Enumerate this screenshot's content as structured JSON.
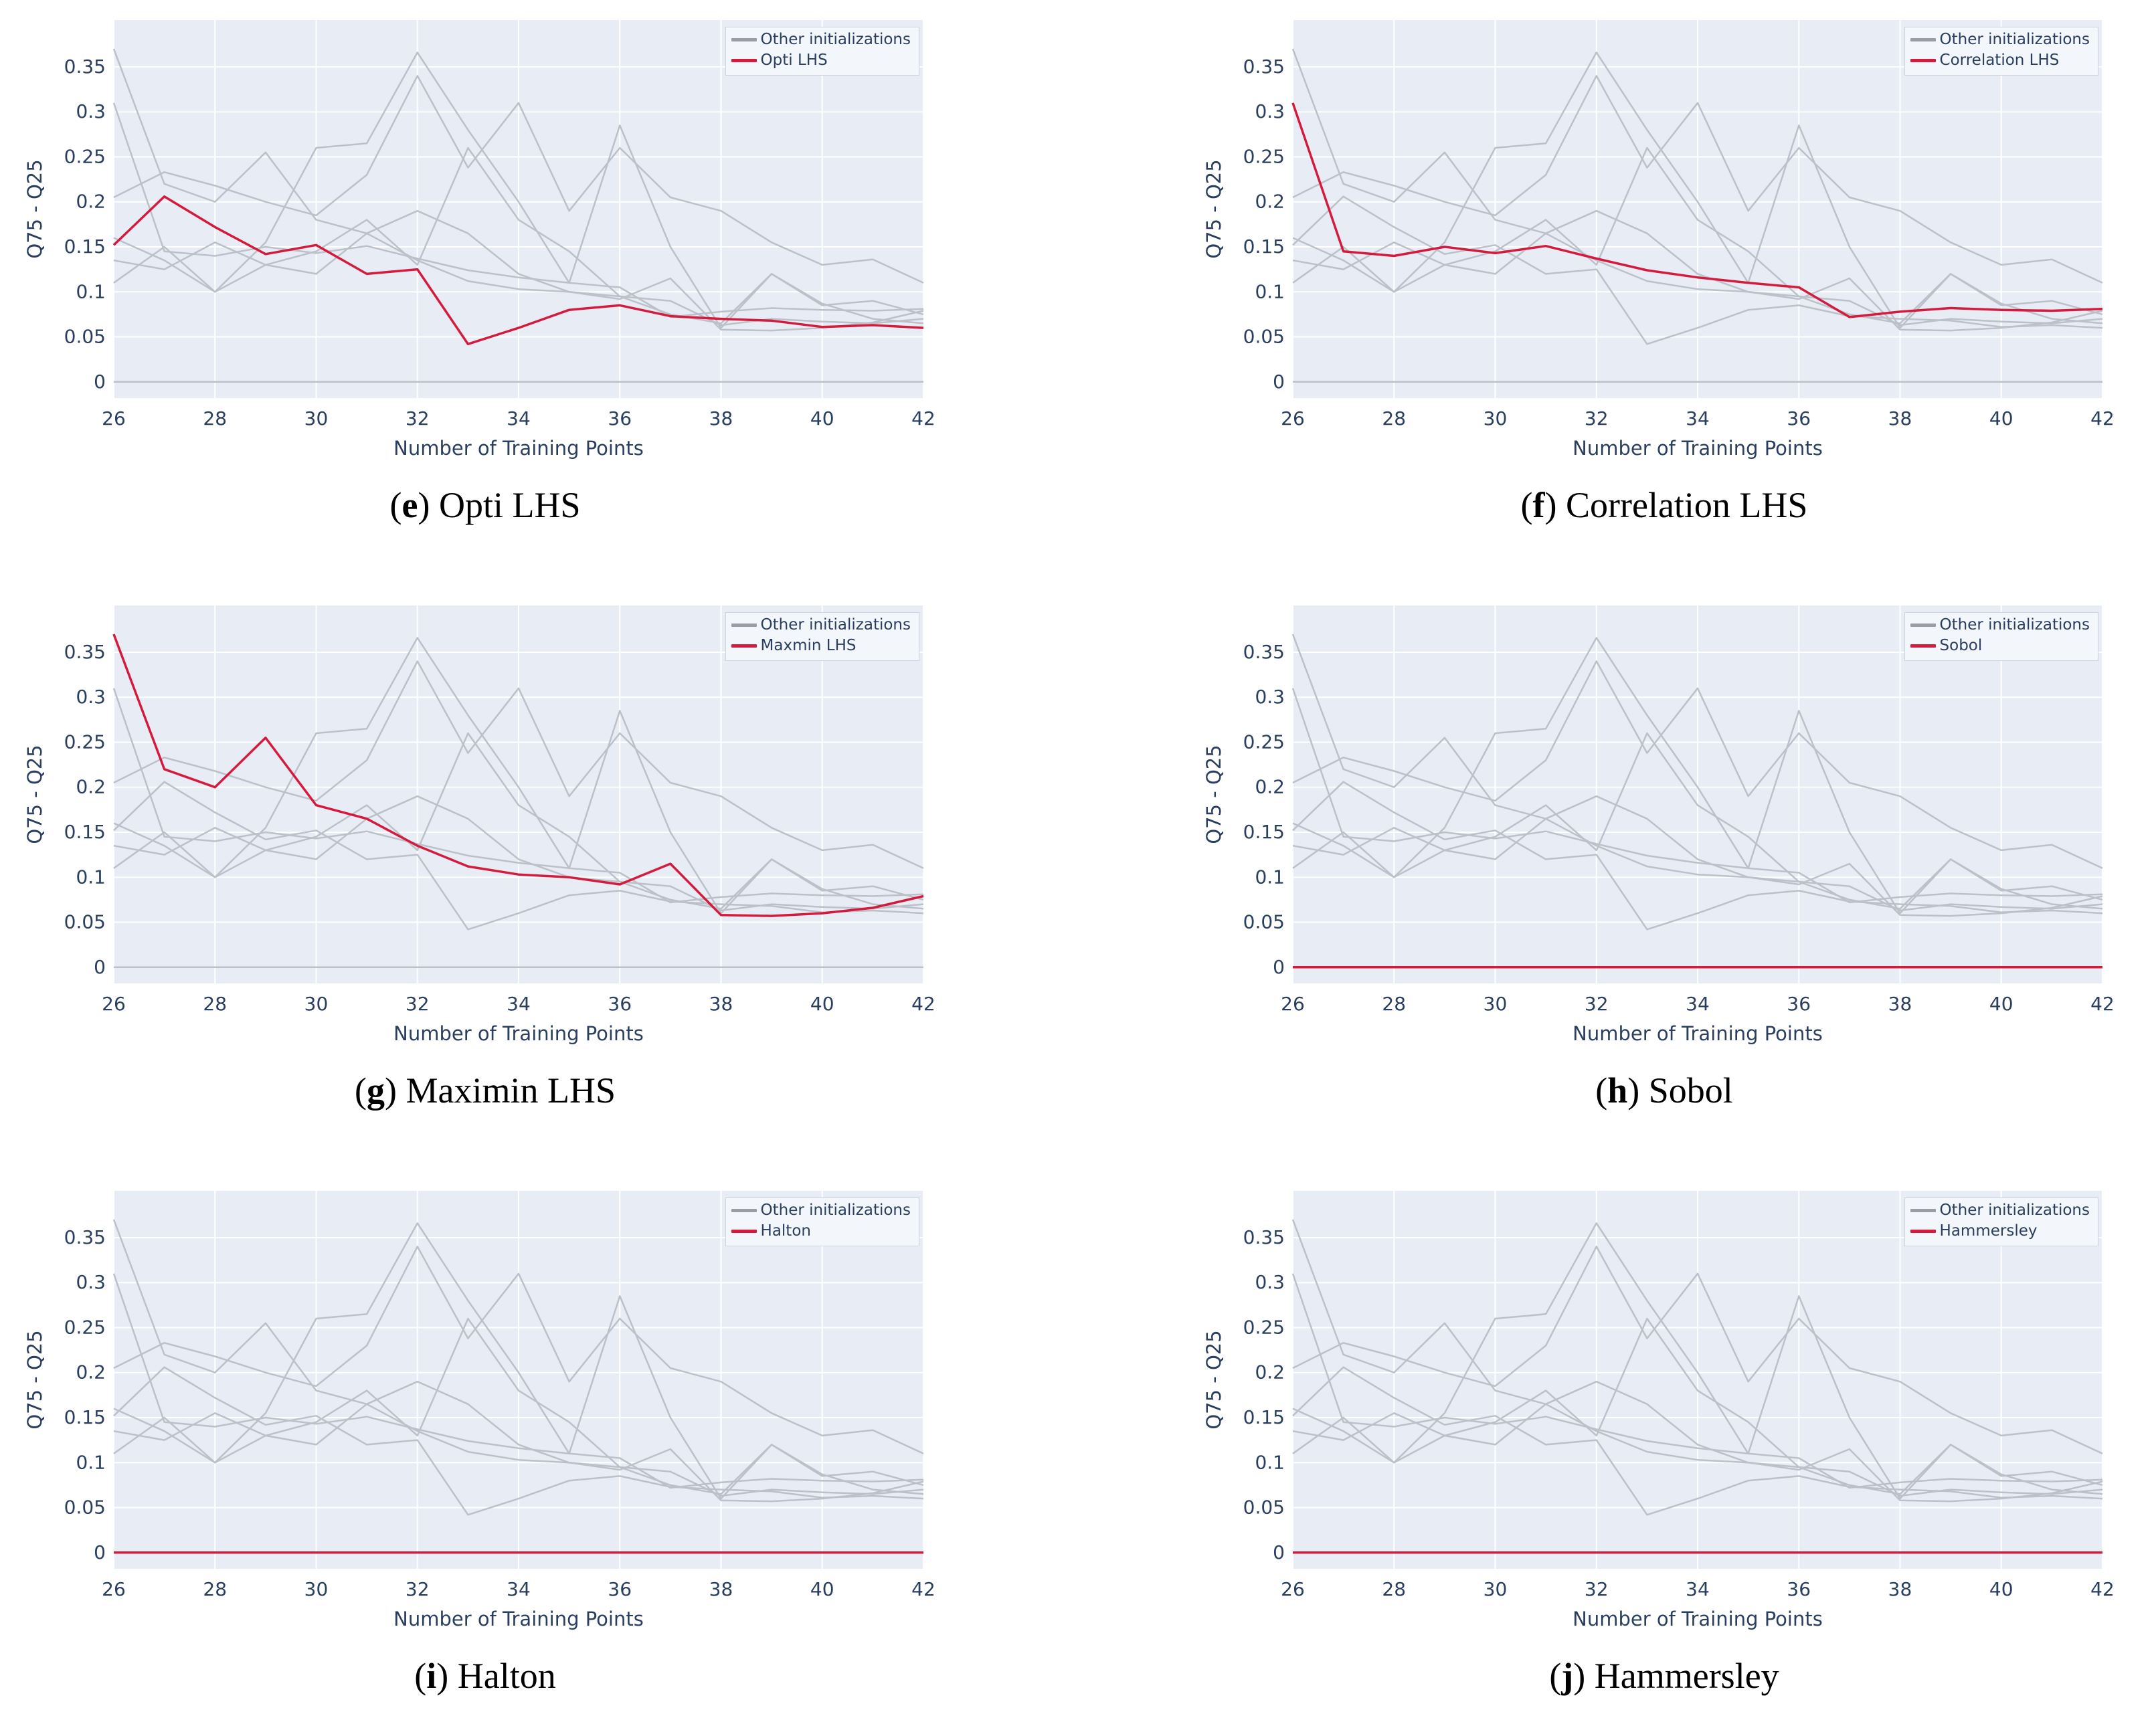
{
  "figure": {
    "legend": {
      "other_label": "Other initializations"
    },
    "axis": {
      "x_label": "Number of Training Points",
      "y_label": "Q75 - Q25",
      "x_tick_labels": [
        "26",
        "28",
        "30",
        "32",
        "34",
        "36",
        "38",
        "40",
        "42"
      ],
      "x_tick_values": [
        26,
        28,
        30,
        32,
        34,
        36,
        38,
        40,
        42
      ],
      "y_tick_labels": [
        "0",
        "0.05",
        "0.1",
        "0.15",
        "0.2",
        "0.25",
        "0.3",
        "0.35"
      ],
      "y_tick_values": [
        0,
        0.05,
        0.1,
        0.15,
        0.2,
        0.25,
        0.3,
        0.35
      ]
    },
    "colors": {
      "highlight": "#d41b3d",
      "other": "#bcc0c9",
      "plot_bg": "#e7ecf5",
      "grid": "#ffffff",
      "axis_text": "#2a3f5f",
      "legend_bg": "#f3f6fb",
      "legend_border": "#ccd2dd",
      "caption_text": "#000000"
    },
    "charts": [
      {
        "caption_letter": "e",
        "caption_label": "Opti LHS",
        "legend_highlight": "Opti LHS",
        "highlight_id": "opti_lhs"
      },
      {
        "caption_letter": "f",
        "caption_label": "Correlation LHS",
        "legend_highlight": "Correlation LHS",
        "highlight_id": "correlation_lhs"
      },
      {
        "caption_letter": "g",
        "caption_label": "Maximin LHS",
        "legend_highlight": "Maxmin LHS",
        "highlight_id": "maxmin_lhs"
      },
      {
        "caption_letter": "h",
        "caption_label": "Sobol",
        "legend_highlight": "Sobol",
        "highlight_id": "sobol"
      },
      {
        "caption_letter": "i",
        "caption_label": "Halton",
        "legend_highlight": "Halton",
        "highlight_id": "halton"
      },
      {
        "caption_letter": "j",
        "caption_label": "Hammersley",
        "legend_highlight": "Hammersley",
        "highlight_id": "hammersley"
      }
    ]
  },
  "chart_data": {
    "type": "line",
    "title": "",
    "xlabel": "Number of Training Points",
    "ylabel": "Q75 - Q25",
    "x": [
      26,
      27,
      28,
      29,
      30,
      31,
      32,
      33,
      34,
      35,
      36,
      37,
      38,
      39,
      40,
      41,
      42
    ],
    "x_range": [
      26,
      42
    ],
    "y_range": [
      -0.018,
      0.402
    ],
    "grid": true,
    "legend_position": "top-right",
    "note": "Six panels share the same ten series; each panel highlights one series in red, the rest are gray 'Other initializations'. Gray-series values are estimates read from the plot.",
    "series": [
      {
        "id": "opti_lhs",
        "values": [
          0.152,
          0.206,
          0.172,
          0.142,
          0.152,
          0.12,
          0.125,
          0.042,
          0.06,
          0.08,
          0.085,
          0.073,
          0.07,
          0.068,
          0.061,
          0.063,
          0.06
        ]
      },
      {
        "id": "correlation_lhs",
        "values": [
          0.31,
          0.145,
          0.14,
          0.15,
          0.143,
          0.151,
          0.137,
          0.124,
          0.116,
          0.11,
          0.105,
          0.072,
          0.078,
          0.082,
          0.08,
          0.079,
          0.081
        ]
      },
      {
        "id": "maxmin_lhs",
        "values": [
          0.37,
          0.22,
          0.2,
          0.255,
          0.18,
          0.165,
          0.135,
          0.112,
          0.103,
          0.1,
          0.092,
          0.115,
          0.058,
          0.057,
          0.06,
          0.066,
          0.079
        ]
      },
      {
        "id": "other_1",
        "values": [
          0.16,
          0.135,
          0.1,
          0.155,
          0.26,
          0.265,
          0.366,
          0.28,
          0.2,
          0.11,
          0.285,
          0.15,
          0.06,
          0.12,
          0.085,
          0.09,
          0.075
        ]
      },
      {
        "id": "other_2",
        "values": [
          0.205,
          0.233,
          0.218,
          0.2,
          0.185,
          0.23,
          0.34,
          0.238,
          0.31,
          0.19,
          0.26,
          0.205,
          0.19,
          0.155,
          0.13,
          0.136,
          0.11
        ]
      },
      {
        "id": "other_3",
        "values": [
          0.135,
          0.125,
          0.155,
          0.13,
          0.145,
          0.18,
          0.13,
          0.26,
          0.18,
          0.145,
          0.095,
          0.075,
          0.065,
          0.12,
          0.087,
          0.07,
          0.065
        ]
      },
      {
        "id": "other_4",
        "values": [
          0.11,
          0.15,
          0.1,
          0.13,
          0.12,
          0.165,
          0.19,
          0.165,
          0.12,
          0.1,
          0.095,
          0.09,
          0.063,
          0.07,
          0.067,
          0.065,
          0.07
        ]
      },
      {
        "id": "sobol",
        "values": [
          0,
          0,
          0,
          0,
          0,
          0,
          0,
          0,
          0,
          0,
          0,
          0,
          0,
          0,
          0,
          0,
          0
        ]
      },
      {
        "id": "halton",
        "values": [
          0,
          0,
          0,
          0,
          0,
          0,
          0,
          0,
          0,
          0,
          0,
          0,
          0,
          0,
          0,
          0,
          0
        ]
      },
      {
        "id": "hammersley",
        "values": [
          0,
          0,
          0,
          0,
          0,
          0,
          0,
          0,
          0,
          0,
          0,
          0,
          0,
          0,
          0,
          0,
          0
        ]
      }
    ]
  }
}
